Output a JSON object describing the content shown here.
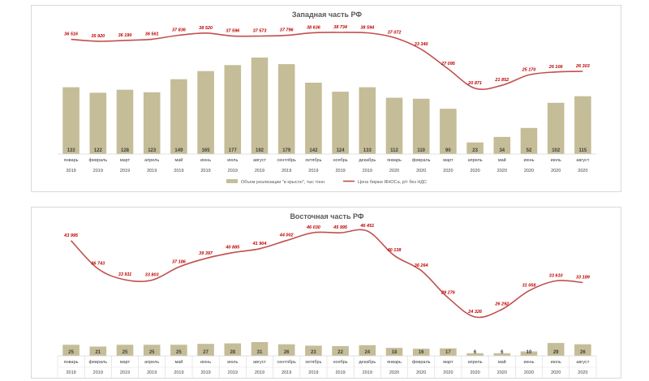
{
  "colors": {
    "bar": "#c5bd98",
    "line": "#c0504d",
    "label_line": "#c00000"
  },
  "categories": [
    "январь",
    "февраль",
    "март",
    "апрель",
    "май",
    "июнь",
    "июль",
    "август",
    "сентябрь",
    "октябрь",
    "ноябрь",
    "декабрь",
    "январь",
    "февраль",
    "март",
    "апрель",
    "май",
    "июнь",
    "июль",
    "август"
  ],
  "years": [
    "2019",
    "2019",
    "2019",
    "2019",
    "2019",
    "2019",
    "2019",
    "2019",
    "2019",
    "2019",
    "2019",
    "2019",
    "2020",
    "2020",
    "2020",
    "2020",
    "2020",
    "2020",
    "2020",
    "2020"
  ],
  "chart_data": [
    {
      "type": "bar",
      "title": "Западная часть РФ",
      "legend": "bottom",
      "series": [
        {
          "name": "Объем реализации \"в крысло\", тыс тонн",
          "type": "bar",
          "values": [
            133,
            122,
            128,
            123,
            149,
            165,
            177,
            192,
            179,
            142,
            124,
            133,
            112,
            110,
            90,
            23,
            34,
            52,
            102,
            115
          ]
        },
        {
          "name": "Цена биржи ЯНОСа, р/т без НДС",
          "type": "line",
          "values": [
            36516,
            35920,
            36190,
            36561,
            37836,
            38520,
            37596,
            37573,
            37796,
            38636,
            38734,
            38594,
            37072,
            33340,
            27095,
            20871,
            21852,
            25170,
            26106,
            26303
          ],
          "labels": [
            "36 516",
            "35 920",
            "36 190",
            "36 561",
            "37 836",
            "38 520",
            "37 596",
            "37 573",
            "37 796",
            "38 636",
            "38 734",
            "38 594",
            "37 072",
            "33 340",
            "27 095",
            "20 871",
            "21 852",
            "25 170",
            "26 106",
            "26 303"
          ]
        }
      ]
    },
    {
      "type": "bar",
      "title": "Восточная часть РФ",
      "series": [
        {
          "type": "bar",
          "values": [
            25,
            21,
            25,
            25,
            25,
            27,
            28,
            31,
            26,
            23,
            22,
            24,
            18,
            16,
            17,
            6,
            6,
            10,
            29,
            26
          ]
        },
        {
          "type": "line",
          "values": [
            43995,
            36743,
            33911,
            33803,
            37186,
            39397,
            40885,
            41904,
            44002,
            46030,
            45995,
            46451,
            40138,
            36264,
            29276,
            24326,
            26292,
            31058,
            33610,
            33189
          ],
          "labels": [
            "43 995",
            "36 743",
            "33 911",
            "33 803",
            "37 186",
            "39 397",
            "40 885",
            "41 904",
            "44 002",
            "46 030",
            "45 995",
            "46 451",
            "40 138",
            "36 264",
            "29 276",
            "24 326",
            "26 292",
            "31 058",
            "33 610",
            "33 189"
          ]
        }
      ]
    }
  ]
}
